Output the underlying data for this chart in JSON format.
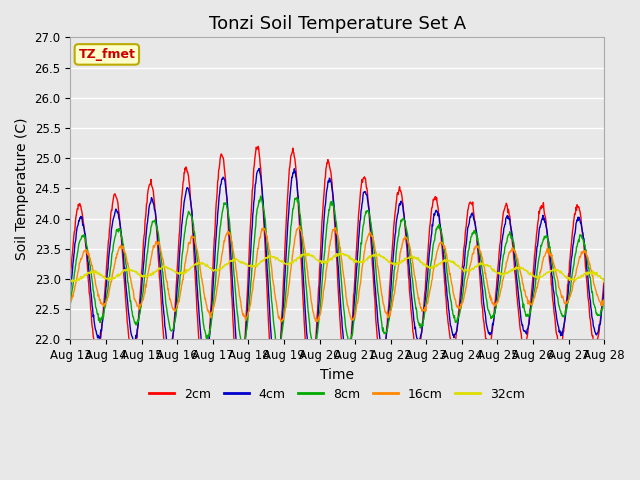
{
  "title": "Tonzi Soil Temperature Set A",
  "xlabel": "Time",
  "ylabel": "Soil Temperature (C)",
  "ylim": [
    22.0,
    27.0
  ],
  "yticks": [
    22.0,
    22.5,
    23.0,
    23.5,
    24.0,
    24.5,
    25.0,
    25.5,
    26.0,
    26.5,
    27.0
  ],
  "xtick_labels": [
    "Aug 13",
    "Aug 14",
    "Aug 15",
    "Aug 16",
    "Aug 17",
    "Aug 18",
    "Aug 19",
    "Aug 20",
    "Aug 21",
    "Aug 22",
    "Aug 23",
    "Aug 24",
    "Aug 25",
    "Aug 26",
    "Aug 27",
    "Aug 28"
  ],
  "series_colors": [
    "#ff0000",
    "#0000cc",
    "#00aa00",
    "#ff8800",
    "#dddd00"
  ],
  "series_labels": [
    "2cm",
    "4cm",
    "8cm",
    "16cm",
    "32cm"
  ],
  "legend_label": "TZ_fmet",
  "legend_bg": "#ffffcc",
  "legend_edge": "#bbaa00",
  "bg_color": "#e8e8e8",
  "grid_color": "#ffffff",
  "title_fontsize": 13,
  "label_fontsize": 10,
  "tick_fontsize": 8.5
}
